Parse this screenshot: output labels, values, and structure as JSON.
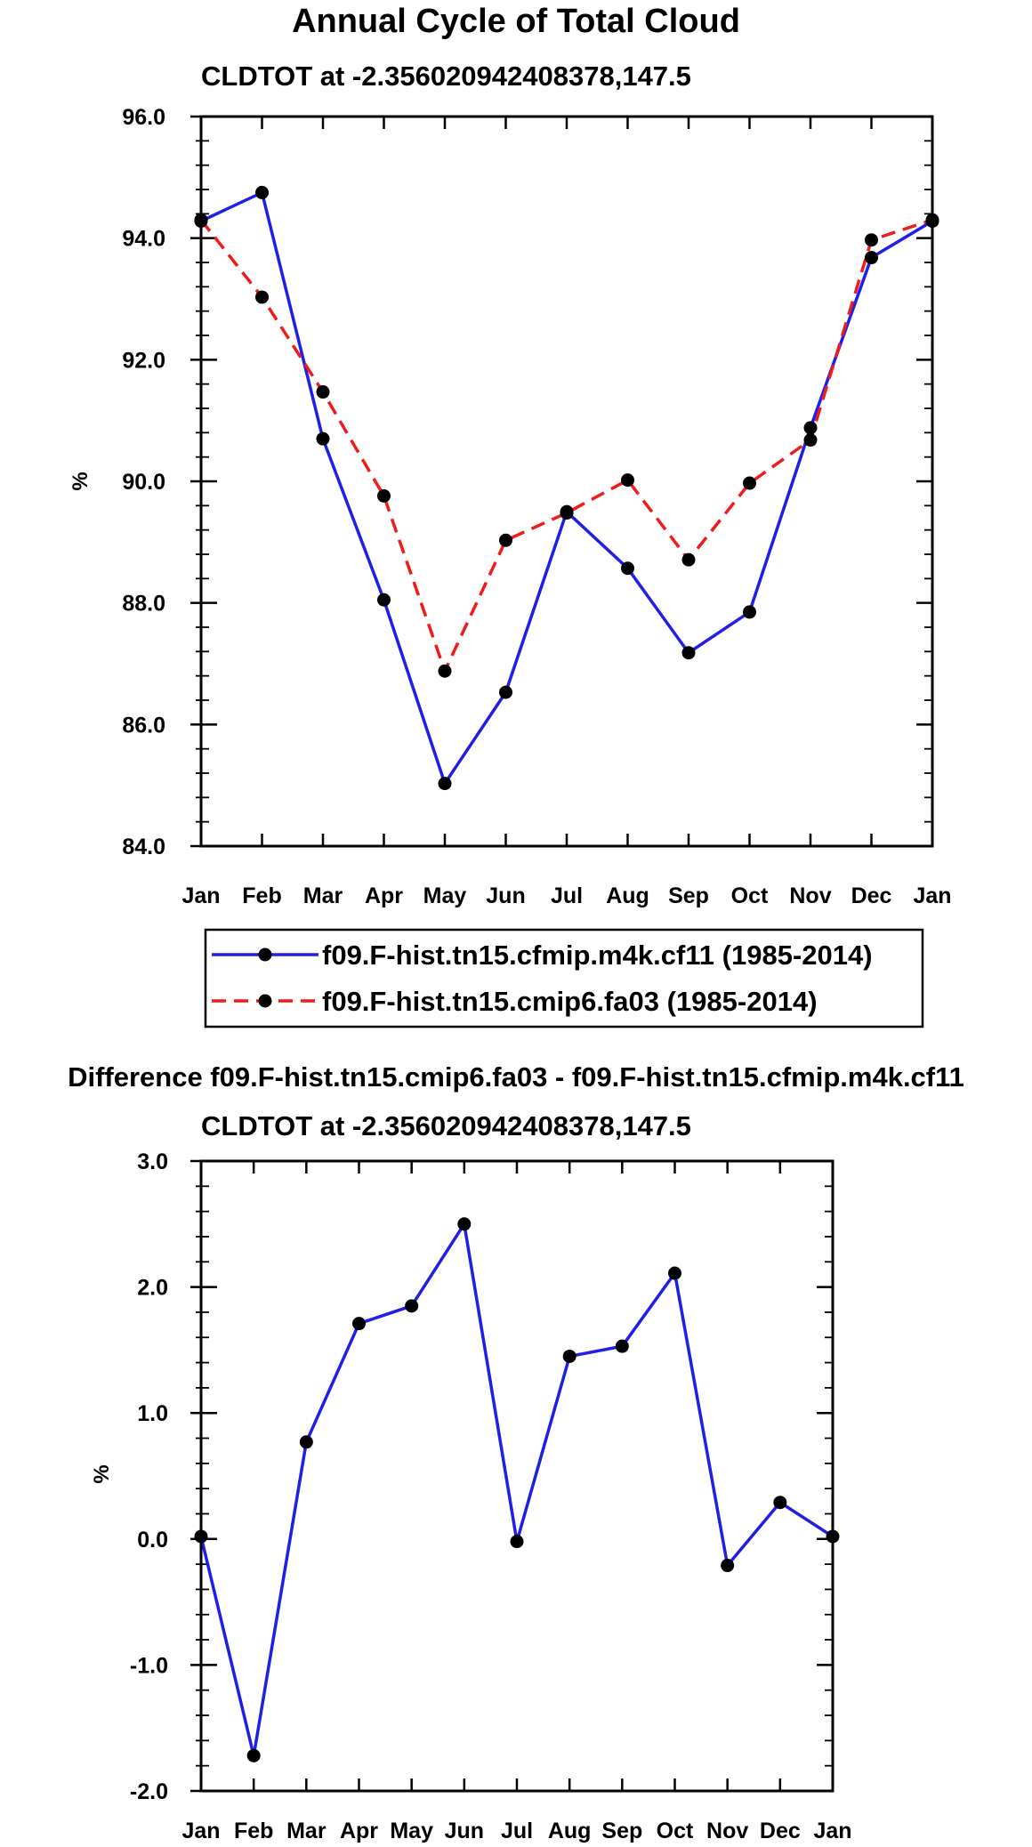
{
  "chart_data": [
    {
      "type": "line",
      "title": "Annual Cycle of Total Cloud",
      "subtitle": "CLDTOT at -2.356020942408378,147.5",
      "xlabel": "",
      "ylabel": "%",
      "categories": [
        "Jan",
        "Feb",
        "Mar",
        "Apr",
        "May",
        "Jun",
        "Jul",
        "Aug",
        "Sep",
        "Oct",
        "Nov",
        "Dec",
        "Jan"
      ],
      "y_tick_labels": [
        "84.0",
        "86.0",
        "88.0",
        "90.0",
        "92.0",
        "94.0",
        "96.0"
      ],
      "ylim": [
        84.0,
        96.0
      ],
      "legend_position": "bottom",
      "series": [
        {
          "name": "f09.F-hist.tn15.cfmip.m4k.cf11 (1985-2014)",
          "color": "#1f1fe6",
          "dash": "solid",
          "marker_color": "#000000",
          "values": [
            94.28,
            94.75,
            90.7,
            88.05,
            85.03,
            86.53,
            89.5,
            88.57,
            87.18,
            87.85,
            90.88,
            93.68,
            94.28
          ]
        },
        {
          "name": "f09.F-hist.tn15.cmip6.fa03 (1985-2014)",
          "color": "#ee1c1c",
          "dash": "dashed",
          "marker_color": "#000000",
          "values": [
            94.3,
            93.03,
            91.47,
            89.76,
            86.88,
            89.03,
            89.48,
            90.02,
            88.71,
            89.97,
            90.68,
            93.97,
            94.3
          ]
        }
      ]
    },
    {
      "type": "line",
      "title": "Difference f09.F-hist.tn15.cmip6.fa03 - f09.F-hist.tn15.cfmip.m4k.cf11",
      "subtitle": "CLDTOT at -2.356020942408378,147.5",
      "xlabel": "",
      "ylabel": "%",
      "categories": [
        "Jan",
        "Feb",
        "Mar",
        "Apr",
        "May",
        "Jun",
        "Jul",
        "Aug",
        "Sep",
        "Oct",
        "Nov",
        "Dec",
        "Jan"
      ],
      "y_tick_labels": [
        "-2.0",
        "-1.0",
        "0.0",
        "1.0",
        "2.0",
        "3.0"
      ],
      "ylim": [
        -2.0,
        3.0
      ],
      "series": [
        {
          "name": "Difference",
          "color": "#1f1fe6",
          "dash": "solid",
          "marker_color": "#000000",
          "values": [
            0.02,
            -1.72,
            0.77,
            1.71,
            1.85,
            2.5,
            -0.02,
            1.45,
            1.53,
            2.11,
            -0.21,
            0.29,
            0.02
          ]
        }
      ]
    }
  ]
}
